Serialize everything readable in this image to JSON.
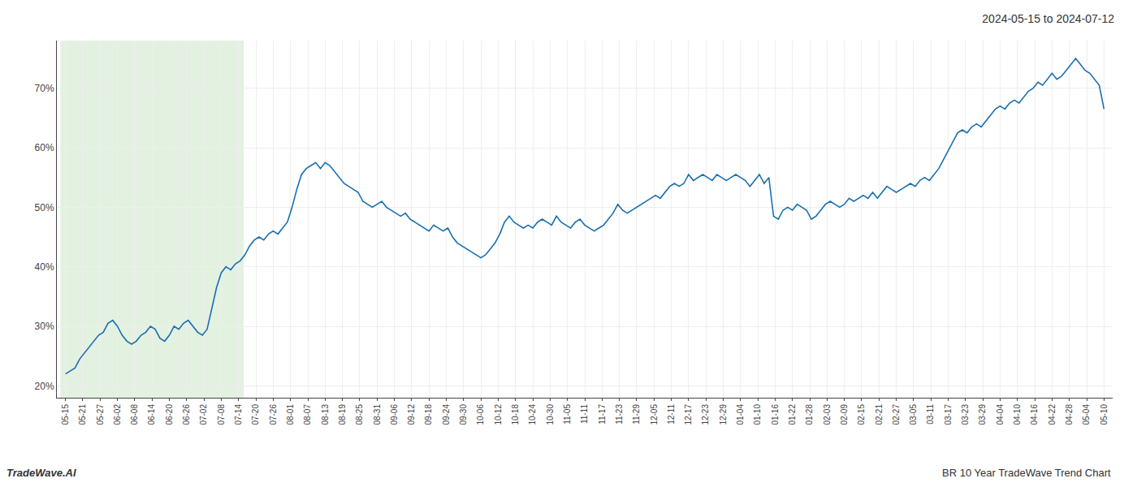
{
  "chart_data": {
    "type": "line",
    "title": "2024-05-15 to 2024-07-12",
    "annotations": [
      "TradeWave.AI",
      "BR 10 Year TradeWave Trend Chart"
    ],
    "color": "#1a6faf",
    "grid": true,
    "shade": {
      "from": 0,
      "to": 10,
      "color": "#cce5c8"
    },
    "xlim": [
      -0.5,
      60.5
    ],
    "xticks": [
      {
        "value": 0,
        "label": "05-15"
      },
      {
        "value": 1,
        "label": "05-21"
      },
      {
        "value": 2,
        "label": "05-27"
      },
      {
        "value": 3,
        "label": "06-02"
      },
      {
        "value": 4,
        "label": "06-08"
      },
      {
        "value": 5,
        "label": "06-14"
      },
      {
        "value": 6,
        "label": "06-20"
      },
      {
        "value": 7,
        "label": "06-26"
      },
      {
        "value": 8,
        "label": "07-02"
      },
      {
        "value": 9,
        "label": "07-08"
      },
      {
        "value": 10,
        "label": "07-14"
      },
      {
        "value": 11,
        "label": "07-20"
      },
      {
        "value": 12,
        "label": "07-26"
      },
      {
        "value": 13,
        "label": "08-01"
      },
      {
        "value": 14,
        "label": "08-07"
      },
      {
        "value": 15,
        "label": "08-13"
      },
      {
        "value": 16,
        "label": "08-19"
      },
      {
        "value": 17,
        "label": "08-25"
      },
      {
        "value": 18,
        "label": "08-31"
      },
      {
        "value": 19,
        "label": "09-06"
      },
      {
        "value": 20,
        "label": "09-12"
      },
      {
        "value": 21,
        "label": "09-18"
      },
      {
        "value": 22,
        "label": "09-24"
      },
      {
        "value": 23,
        "label": "09-30"
      },
      {
        "value": 24,
        "label": "10-06"
      },
      {
        "value": 25,
        "label": "10-12"
      },
      {
        "value": 26,
        "label": "10-18"
      },
      {
        "value": 27,
        "label": "10-24"
      },
      {
        "value": 28,
        "label": "10-30"
      },
      {
        "value": 29,
        "label": "11-05"
      },
      {
        "value": 30,
        "label": "11-11"
      },
      {
        "value": 31,
        "label": "11-17"
      },
      {
        "value": 32,
        "label": "11-23"
      },
      {
        "value": 33,
        "label": "11-29"
      },
      {
        "value": 34,
        "label": "12-05"
      },
      {
        "value": 35,
        "label": "12-11"
      },
      {
        "value": 36,
        "label": "12-17"
      },
      {
        "value": 37,
        "label": "12-23"
      },
      {
        "value": 38,
        "label": "12-29"
      },
      {
        "value": 39,
        "label": "01-04"
      },
      {
        "value": 40,
        "label": "01-10"
      },
      {
        "value": 41,
        "label": "01-16"
      },
      {
        "value": 42,
        "label": "01-22"
      },
      {
        "value": 43,
        "label": "01-28"
      },
      {
        "value": 44,
        "label": "02-03"
      },
      {
        "value": 45,
        "label": "02-09"
      },
      {
        "value": 46,
        "label": "02-15"
      },
      {
        "value": 47,
        "label": "02-21"
      },
      {
        "value": 48,
        "label": "02-27"
      },
      {
        "value": 49,
        "label": "03-05"
      },
      {
        "value": 50,
        "label": "03-11"
      },
      {
        "value": 51,
        "label": "03-17"
      },
      {
        "value": 52,
        "label": "03-23"
      },
      {
        "value": 53,
        "label": "03-29"
      },
      {
        "value": 54,
        "label": "04-04"
      },
      {
        "value": 55,
        "label": "04-10"
      },
      {
        "value": 56,
        "label": "04-16"
      },
      {
        "value": 57,
        "label": "04-22"
      },
      {
        "value": 58,
        "label": "04-28"
      },
      {
        "value": 59,
        "label": "05-04"
      },
      {
        "value": 60,
        "label": "05-10"
      }
    ],
    "ylim": [
      18,
      78
    ],
    "yticks": [
      {
        "value": 20,
        "label": "20%"
      },
      {
        "value": 30,
        "label": "30%"
      },
      {
        "value": 40,
        "label": "40%"
      },
      {
        "value": 50,
        "label": "50%"
      },
      {
        "value": 60,
        "label": "60%"
      },
      {
        "value": 70,
        "label": "70%"
      }
    ],
    "values": [
      22.0,
      22.5,
      23.0,
      24.5,
      25.5,
      26.5,
      27.5,
      28.5,
      29.0,
      30.5,
      31.0,
      30.0,
      28.5,
      27.5,
      27.0,
      27.5,
      28.5,
      29.0,
      30.0,
      29.5,
      28.0,
      27.5,
      28.5,
      30.0,
      29.5,
      30.5,
      31.0,
      30.0,
      29.0,
      28.5,
      29.5,
      33.0,
      36.5,
      39.0,
      40.0,
      39.5,
      40.5,
      41.0,
      42.0,
      43.5,
      44.5,
      45.0,
      44.5,
      45.5,
      46.0,
      45.5,
      46.5,
      47.5,
      50.0,
      53.0,
      55.5,
      56.5,
      57.0,
      57.5,
      56.5,
      57.5,
      57.0,
      56.0,
      55.0,
      54.0,
      53.5,
      53.0,
      52.5,
      51.0,
      50.5,
      50.0,
      50.5,
      51.0,
      50.0,
      49.5,
      49.0,
      48.5,
      49.0,
      48.0,
      47.5,
      47.0,
      46.5,
      46.0,
      47.0,
      46.5,
      46.0,
      46.5,
      45.0,
      44.0,
      43.5,
      43.0,
      42.5,
      42.0,
      41.5,
      42.0,
      43.0,
      44.0,
      45.5,
      47.5,
      48.5,
      47.5,
      47.0,
      46.5,
      47.0,
      46.5,
      47.5,
      48.0,
      47.5,
      47.0,
      48.5,
      47.5,
      47.0,
      46.5,
      47.5,
      48.0,
      47.0,
      46.5,
      46.0,
      46.5,
      47.0,
      48.0,
      49.0,
      50.5,
      49.5,
      49.0,
      49.5,
      50.0,
      50.5,
      51.0,
      51.5,
      52.0,
      51.5,
      52.5,
      53.5,
      54.0,
      53.5,
      54.0,
      55.5,
      54.5,
      55.0,
      55.5,
      55.0,
      54.5,
      55.5,
      55.0,
      54.5,
      55.0,
      55.5,
      55.0,
      54.5,
      53.5,
      54.5,
      55.5,
      54.0,
      55.0,
      48.5,
      48.0,
      49.5,
      50.0,
      49.5,
      50.5,
      50.0,
      49.5,
      48.0,
      48.5,
      49.5,
      50.5,
      51.0,
      50.5,
      50.0,
      50.5,
      51.5,
      51.0,
      51.5,
      52.0,
      51.5,
      52.5,
      51.5,
      52.5,
      53.5,
      53.0,
      52.5,
      53.0,
      53.5,
      54.0,
      53.5,
      54.5,
      55.0,
      54.5,
      55.5,
      56.5,
      58.0,
      59.5,
      61.0,
      62.5,
      63.0,
      62.5,
      63.5,
      64.0,
      63.5,
      64.5,
      65.5,
      66.5,
      67.0,
      66.5,
      67.5,
      68.0,
      67.5,
      68.5,
      69.5,
      70.0,
      71.0,
      70.5,
      71.5,
      72.5,
      71.5,
      72.0,
      73.0,
      74.0,
      75.0,
      74.0,
      73.0,
      72.5,
      71.5,
      70.5,
      66.5
    ]
  }
}
